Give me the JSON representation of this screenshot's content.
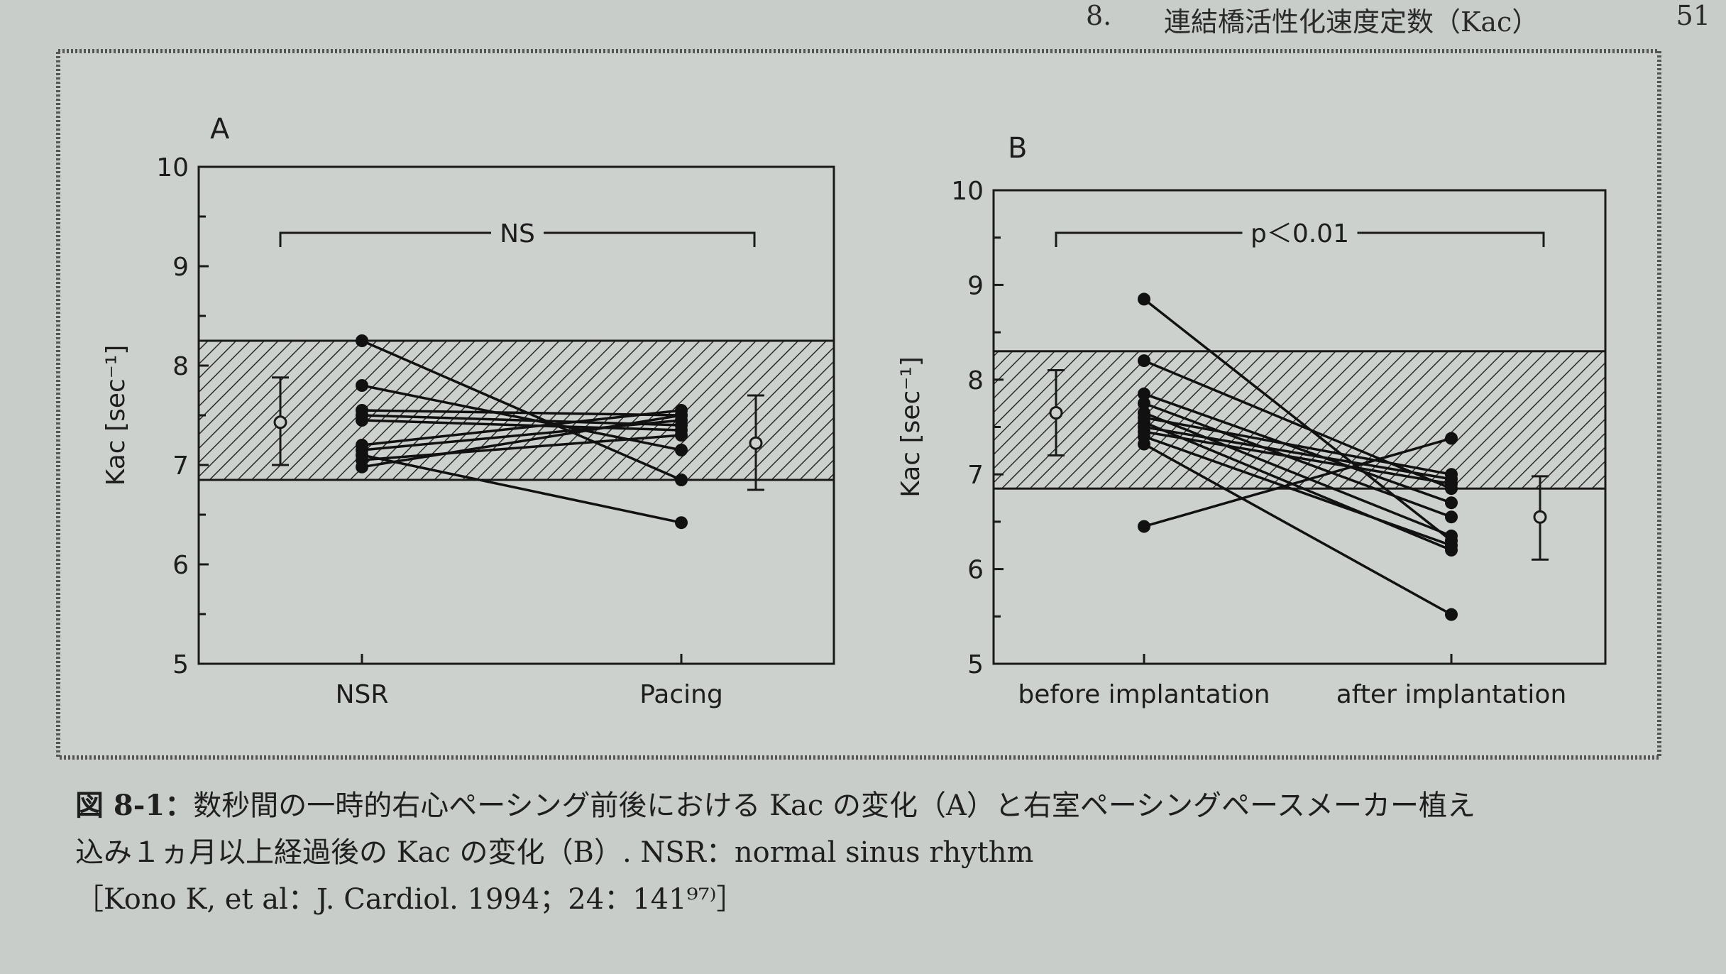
{
  "header": {
    "section": "8.",
    "title": "連結橋活性化速度定数（Kac）",
    "page_number": "51"
  },
  "caption": {
    "figure_label": "図 8-1：",
    "line1": "数秒間の一時的右心ペーシング前後における Kac の変化（A）と右室ペーシングペースメーカー植え",
    "line2": "込み１ヵ月以上経過後の Kac の変化（B）. NSR：normal sinus rhythm",
    "line3": "［Kono K, et al：J. Cardiol. 1994；24：141⁹⁷⁾］"
  },
  "colors": {
    "ink": "#1a1a1a",
    "panel_bg": "#cdd1ce",
    "hatch": "#2a2a2a"
  },
  "chart_data": [
    {
      "panel": "A",
      "type": "scatter",
      "x_categories": [
        "NSR",
        "Pacing"
      ],
      "ylabel": "Kac [sec⁻¹]",
      "ylim": [
        5,
        10
      ],
      "yticks": [
        "5",
        "6",
        "7",
        "8",
        "9",
        "10"
      ],
      "normal_range": [
        6.85,
        8.25
      ],
      "significance": "NS",
      "pairs": [
        [
          8.25,
          6.85
        ],
        [
          7.8,
          7.15
        ],
        [
          7.55,
          7.5
        ],
        [
          7.5,
          7.4
        ],
        [
          7.45,
          7.35
        ],
        [
          7.2,
          7.55
        ],
        [
          7.15,
          7.45
        ],
        [
          7.1,
          6.42
        ],
        [
          7.05,
          7.3
        ],
        [
          6.98,
          7.5
        ]
      ],
      "summary": [
        {
          "category": "NSR",
          "mean": 7.43,
          "sd_low": 7.0,
          "sd_high": 7.88
        },
        {
          "category": "Pacing",
          "mean": 7.22,
          "sd_low": 6.75,
          "sd_high": 7.7
        }
      ]
    },
    {
      "panel": "B",
      "type": "scatter",
      "x_categories": [
        "before implantation",
        "after implantation"
      ],
      "ylabel": "Kac [sec⁻¹]",
      "ylim": [
        5,
        10
      ],
      "yticks": [
        "5",
        "6",
        "7",
        "8",
        "9",
        "10"
      ],
      "normal_range": [
        6.85,
        8.3
      ],
      "significance": "p＜0.01",
      "pairs": [
        [
          8.85,
          6.3
        ],
        [
          8.2,
          6.85
        ],
        [
          7.85,
          6.7
        ],
        [
          7.75,
          6.55
        ],
        [
          7.65,
          6.35
        ],
        [
          7.6,
          7.0
        ],
        [
          7.55,
          6.2
        ],
        [
          7.5,
          6.95
        ],
        [
          7.45,
          6.9
        ],
        [
          7.4,
          6.25
        ],
        [
          7.32,
          5.52
        ],
        [
          6.45,
          7.38
        ]
      ],
      "summary": [
        {
          "category": "before implantation",
          "mean": 7.65,
          "sd_low": 7.2,
          "sd_high": 8.1
        },
        {
          "category": "after implantation",
          "mean": 6.55,
          "sd_low": 6.1,
          "sd_high": 6.98
        }
      ]
    }
  ]
}
